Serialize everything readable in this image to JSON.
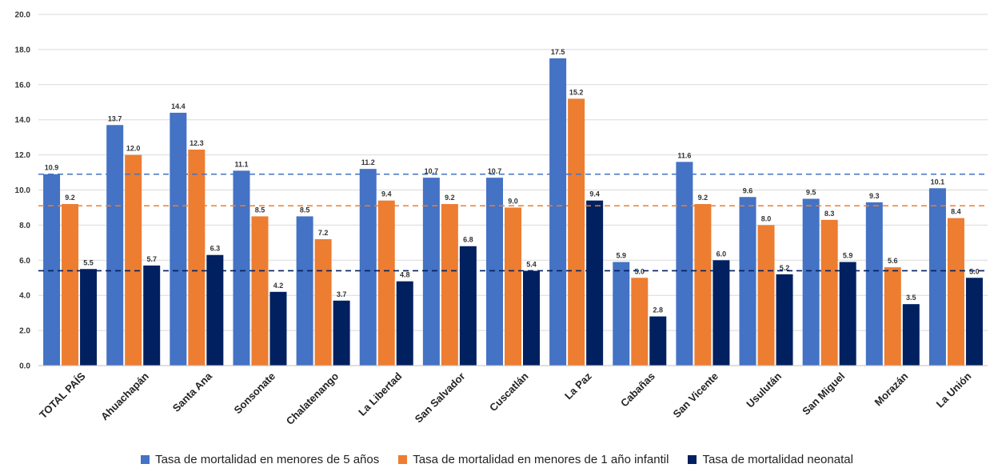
{
  "chart_data": {
    "type": "bar",
    "categories": [
      "TOTAL PAÍS",
      "Ahuachapán",
      "Santa Ana",
      "Sonsonate",
      "Chalatenango",
      "La Libertad",
      "San Salvador",
      "Cuscatlán",
      "La Paz",
      "Cabañas",
      "San Vicente",
      "Usulután",
      "San Miguel",
      "Morazán",
      "La Unión"
    ],
    "series": [
      {
        "name": "Tasa de mortalidad en menores de 5 años",
        "color": "#4472c4",
        "values": [
          10.9,
          13.7,
          14.4,
          11.1,
          8.5,
          11.2,
          10.7,
          10.7,
          17.5,
          5.9,
          11.6,
          9.6,
          9.5,
          9.3,
          10.1
        ]
      },
      {
        "name": "Tasa de mortalidad en menores de 1 año infantil",
        "color": "#ed7d31",
        "values": [
          9.2,
          12.0,
          12.3,
          8.5,
          7.2,
          9.4,
          9.2,
          9.0,
          15.2,
          5.0,
          9.2,
          8.0,
          8.3,
          5.6,
          8.4
        ]
      },
      {
        "name": "Tasa de mortalidad neonatal",
        "color": "#002060",
        "values": [
          5.5,
          5.7,
          6.3,
          4.2,
          3.7,
          4.8,
          6.8,
          5.4,
          9.4,
          2.8,
          6.0,
          5.2,
          5.9,
          3.5,
          5.0
        ]
      }
    ],
    "data_labels": [
      [
        "10.9",
        "13.7",
        "14.4",
        "11.1",
        "8.5",
        "11.2",
        "10.7",
        "10.7",
        "17.5",
        "5.9",
        "11.6",
        "9.6",
        "9.5",
        "9.3",
        "10.1"
      ],
      [
        "9.2",
        "12.0",
        "12.3",
        "8.5",
        "7.2",
        "9.4",
        "9.2",
        "9.0",
        "15.2",
        "5.0",
        "9.2",
        "8.0",
        "8.3",
        "5.6",
        "8.4"
      ],
      [
        "5.5",
        "5.7",
        "6.3",
        "4.2",
        "3.7",
        "4.8",
        "6.8",
        "5.4",
        "9.4",
        "2.8",
        "6.0",
        "5.2",
        "5.9",
        "3.5",
        "5.0"
      ]
    ],
    "reference_lines": [
      {
        "value": 10.9,
        "color": "#4472c4",
        "style": "dashed"
      },
      {
        "value": 9.1,
        "color": "#ed7d31",
        "style": "dashed"
      },
      {
        "value": 5.4,
        "color": "#002060",
        "style": "dashed"
      }
    ],
    "ylim": [
      0,
      20
    ],
    "y_ticks": [
      "0.0",
      "2.0",
      "4.0",
      "6.0",
      "8.0",
      "10.0",
      "12.0",
      "14.0",
      "16.0",
      "18.0",
      "20.0"
    ],
    "grid": true,
    "legend_position": "bottom",
    "title": "",
    "xlabel": "",
    "ylabel": ""
  }
}
